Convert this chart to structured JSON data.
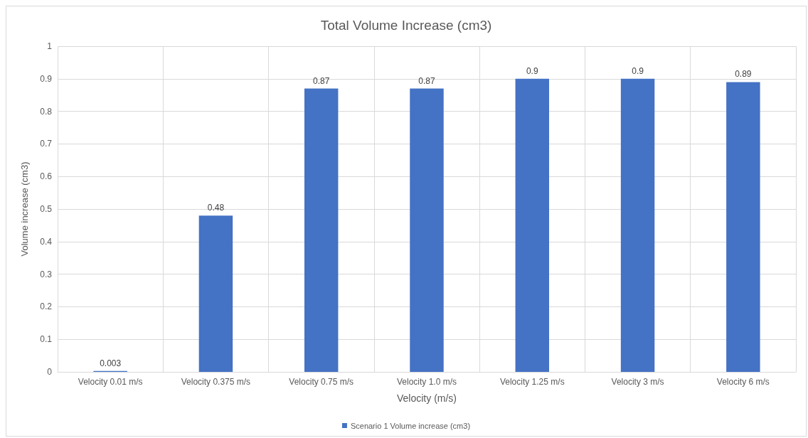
{
  "chart_data": {
    "type": "bar",
    "title": "Total Volume Increase (cm3)",
    "xlabel": "Velocity (m/s)",
    "ylabel": "Volume increase (cm3)",
    "categories": [
      "Velocity 0.01 m/s",
      "Velocity 0.375 m/s",
      "Velocity 0.75 m/s",
      "Velocity 1.0 m/s",
      "Velocity 1.25 m/s",
      "Velocity 3 m/s",
      "Velocity 6 m/s"
    ],
    "series": [
      {
        "name": "Scenario 1 Volume increase (cm3)",
        "color": "#4472c4",
        "values": [
          0.003,
          0.48,
          0.87,
          0.87,
          0.9,
          0.9,
          0.89
        ]
      }
    ],
    "ylim": [
      0,
      1
    ],
    "yticks": [
      0,
      0.1,
      0.2,
      0.3,
      0.4,
      0.5,
      0.6,
      0.7,
      0.8,
      0.9,
      1
    ],
    "grid": true,
    "legend": "bottom",
    "data_labels": true
  }
}
